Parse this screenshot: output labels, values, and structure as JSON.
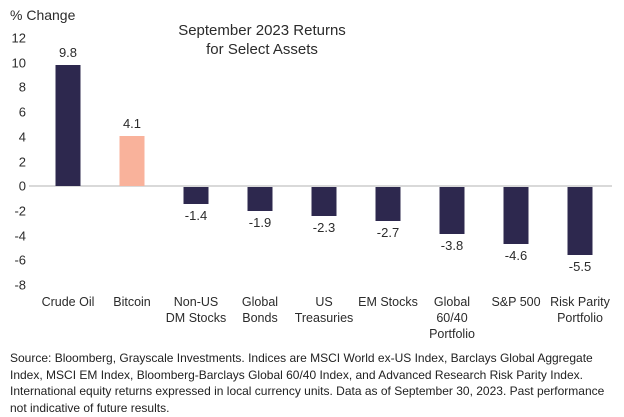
{
  "header": {
    "y_axis_title": "% Change",
    "title_line1": "September 2023 Returns",
    "title_line2": "for Select Assets"
  },
  "chart_data": {
    "type": "bar",
    "title": "September 2023 Returns for Select Assets",
    "ylabel": "% Change",
    "xlabel": "",
    "categories": [
      "Crude Oil",
      "Bitcoin",
      "Non-US\nDM Stocks",
      "Global\nBonds",
      "US\nTreasuries",
      "EM Stocks",
      "Global\n60/40\nPortfolio",
      "S&P 500",
      "Risk Parity\nPortfolio"
    ],
    "values": [
      9.8,
      4.1,
      -1.4,
      -1.9,
      -2.3,
      -2.7,
      -3.8,
      -4.6,
      -5.5
    ],
    "value_labels": [
      "9.8",
      "4.1",
      "-1.4",
      "-1.9",
      "-2.3",
      "-2.7",
      "-3.8",
      "-4.6",
      "-5.5"
    ],
    "bar_colors": [
      "#2d284e",
      "#f9b29b",
      "#2d284e",
      "#2d284e",
      "#2d284e",
      "#2d284e",
      "#2d284e",
      "#2d284e",
      "#2d284e"
    ],
    "ylim": [
      -8,
      12
    ],
    "ytick_step": 2,
    "grid": false,
    "legend_position": "none",
    "colors": {
      "bar_default": "#2d284e",
      "bar_highlight": "#f9b29b",
      "zero_line": "#d9d9d9",
      "text": "#2b2b2b"
    }
  },
  "footnote": {
    "text": "Source: Bloomberg, Grayscale Investments. Indices are MSCI World ex-US Index, Barclays Global Aggregate Index, MSCI EM Index, Bloomberg-Barclays Global 60/40 Index, and Advanced Research Risk Parity Index. International equity returns expressed in local currency units. Data as of September 30, 2023. Past performance not indicative of future results."
  }
}
